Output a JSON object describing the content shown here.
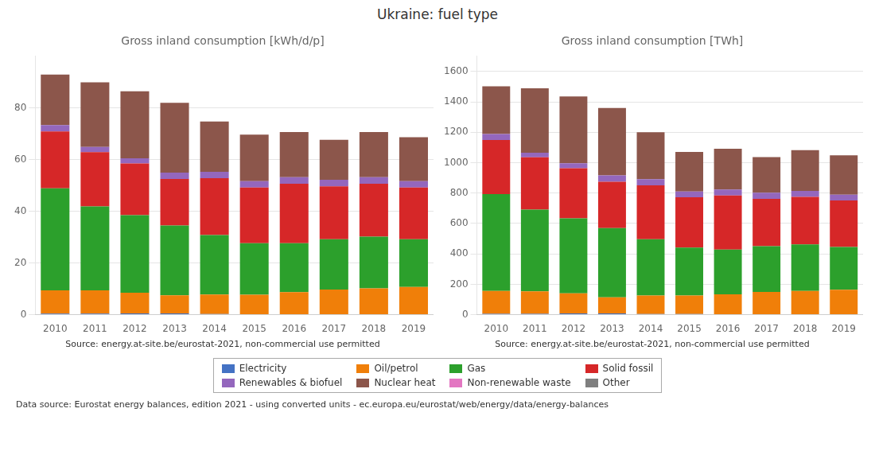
{
  "title": "Ukraine: fuel type",
  "annotations": [
    "Data source: Eurostat energy balances, edition 2021 - using converted units - ec.europa.eu/eurostat/web/energy/data/energy-balances"
  ],
  "legend": "bottom",
  "chart_data": [
    {
      "type": "bar",
      "stacked": true,
      "grid": true,
      "title": "Gross inland consumption [kWh/d/p]",
      "annotations": [
        "Source: energy.at-site.be/eurostat-2021, non-commercial use permitted"
      ],
      "categories": [
        2010,
        2011,
        2012,
        2013,
        2014,
        2015,
        2016,
        2017,
        2018,
        2019
      ],
      "series": [
        {
          "name": "Electricity",
          "color": "#4472c4",
          "values": [
            0.4,
            0.4,
            0.5,
            0.5,
            0.3,
            0.2,
            0.2,
            0.2,
            0.2,
            0.2
          ]
        },
        {
          "name": "Oil/petrol",
          "color": "#f07f09",
          "values": [
            9.0,
            9.0,
            8.0,
            7.0,
            7.5,
            7.5,
            8.5,
            9.5,
            10.0,
            10.5
          ]
        },
        {
          "name": "Gas",
          "color": "#2ca02c",
          "values": [
            39.5,
            32.5,
            30.0,
            27.0,
            23.0,
            20.0,
            19.0,
            19.5,
            20.0,
            18.5
          ]
        },
        {
          "name": "Solid fossil",
          "color": "#d62728",
          "values": [
            22.0,
            21.0,
            20.0,
            18.0,
            22.0,
            21.5,
            23.0,
            20.5,
            20.5,
            20.0
          ]
        },
        {
          "name": "Renewables & biofuel",
          "color": "#9467bd",
          "values": [
            2.5,
            2.0,
            2.0,
            2.5,
            2.5,
            2.5,
            2.5,
            2.5,
            2.5,
            2.5
          ]
        },
        {
          "name": "Nuclear heat",
          "color": "#8c564b",
          "values": [
            19.5,
            25.0,
            26.0,
            27.0,
            19.5,
            18.0,
            17.5,
            15.5,
            17.5,
            17.0
          ]
        },
        {
          "name": "Non-renewable waste",
          "color": "#e377c2",
          "values": [
            0.0,
            0.0,
            0.0,
            0.0,
            0.0,
            0.0,
            0.0,
            0.0,
            0.0,
            0.0
          ]
        },
        {
          "name": "Other",
          "color": "#7f7f7f",
          "values": [
            0.0,
            0.0,
            0.0,
            0.0,
            0.0,
            0.0,
            0.0,
            0.0,
            0.0,
            0.0
          ]
        }
      ],
      "ylim": [
        0,
        100
      ],
      "yticks": [
        0,
        20,
        40,
        60,
        80
      ]
    },
    {
      "type": "bar",
      "stacked": true,
      "grid": true,
      "title": "Gross inland consumption [TWh]",
      "annotations": [
        "Source: energy.at-site.be/eurostat-2021, non-commercial use permitted"
      ],
      "categories": [
        2010,
        2011,
        2012,
        2013,
        2014,
        2015,
        2016,
        2017,
        2018,
        2019
      ],
      "series": [
        {
          "name": "Electricity",
          "color": "#4472c4",
          "values": [
            6,
            6,
            8,
            8,
            5,
            4,
            3,
            3,
            3,
            3
          ]
        },
        {
          "name": "Oil/petrol",
          "color": "#f07f09",
          "values": [
            150,
            147,
            132,
            106,
            121,
            122,
            131,
            147,
            153,
            161
          ]
        },
        {
          "name": "Gas",
          "color": "#2ca02c",
          "values": [
            638,
            538,
            494,
            456,
            371,
            315,
            295,
            300,
            307,
            282
          ]
        },
        {
          "name": "Solid fossil",
          "color": "#d62728",
          "values": [
            355,
            345,
            330,
            304,
            354,
            332,
            355,
            312,
            312,
            306
          ]
        },
        {
          "name": "Renewables & biofuel",
          "color": "#9467bd",
          "values": [
            40,
            30,
            32,
            42,
            40,
            38,
            40,
            40,
            40,
            38
          ]
        },
        {
          "name": "Nuclear heat",
          "color": "#8c564b",
          "values": [
            314,
            424,
            440,
            444,
            310,
            260,
            268,
            235,
            268,
            258
          ]
        },
        {
          "name": "Non-renewable waste",
          "color": "#e377c2",
          "values": [
            0,
            0,
            0,
            0,
            0,
            0,
            0,
            0,
            0,
            0
          ]
        },
        {
          "name": "Other",
          "color": "#7f7f7f",
          "values": [
            0,
            0,
            0,
            0,
            0,
            0,
            0,
            0,
            0,
            0
          ]
        }
      ],
      "ylim": [
        0,
        1700
      ],
      "yticks": [
        0,
        200,
        400,
        600,
        800,
        1000,
        1200,
        1400,
        1600
      ]
    }
  ]
}
